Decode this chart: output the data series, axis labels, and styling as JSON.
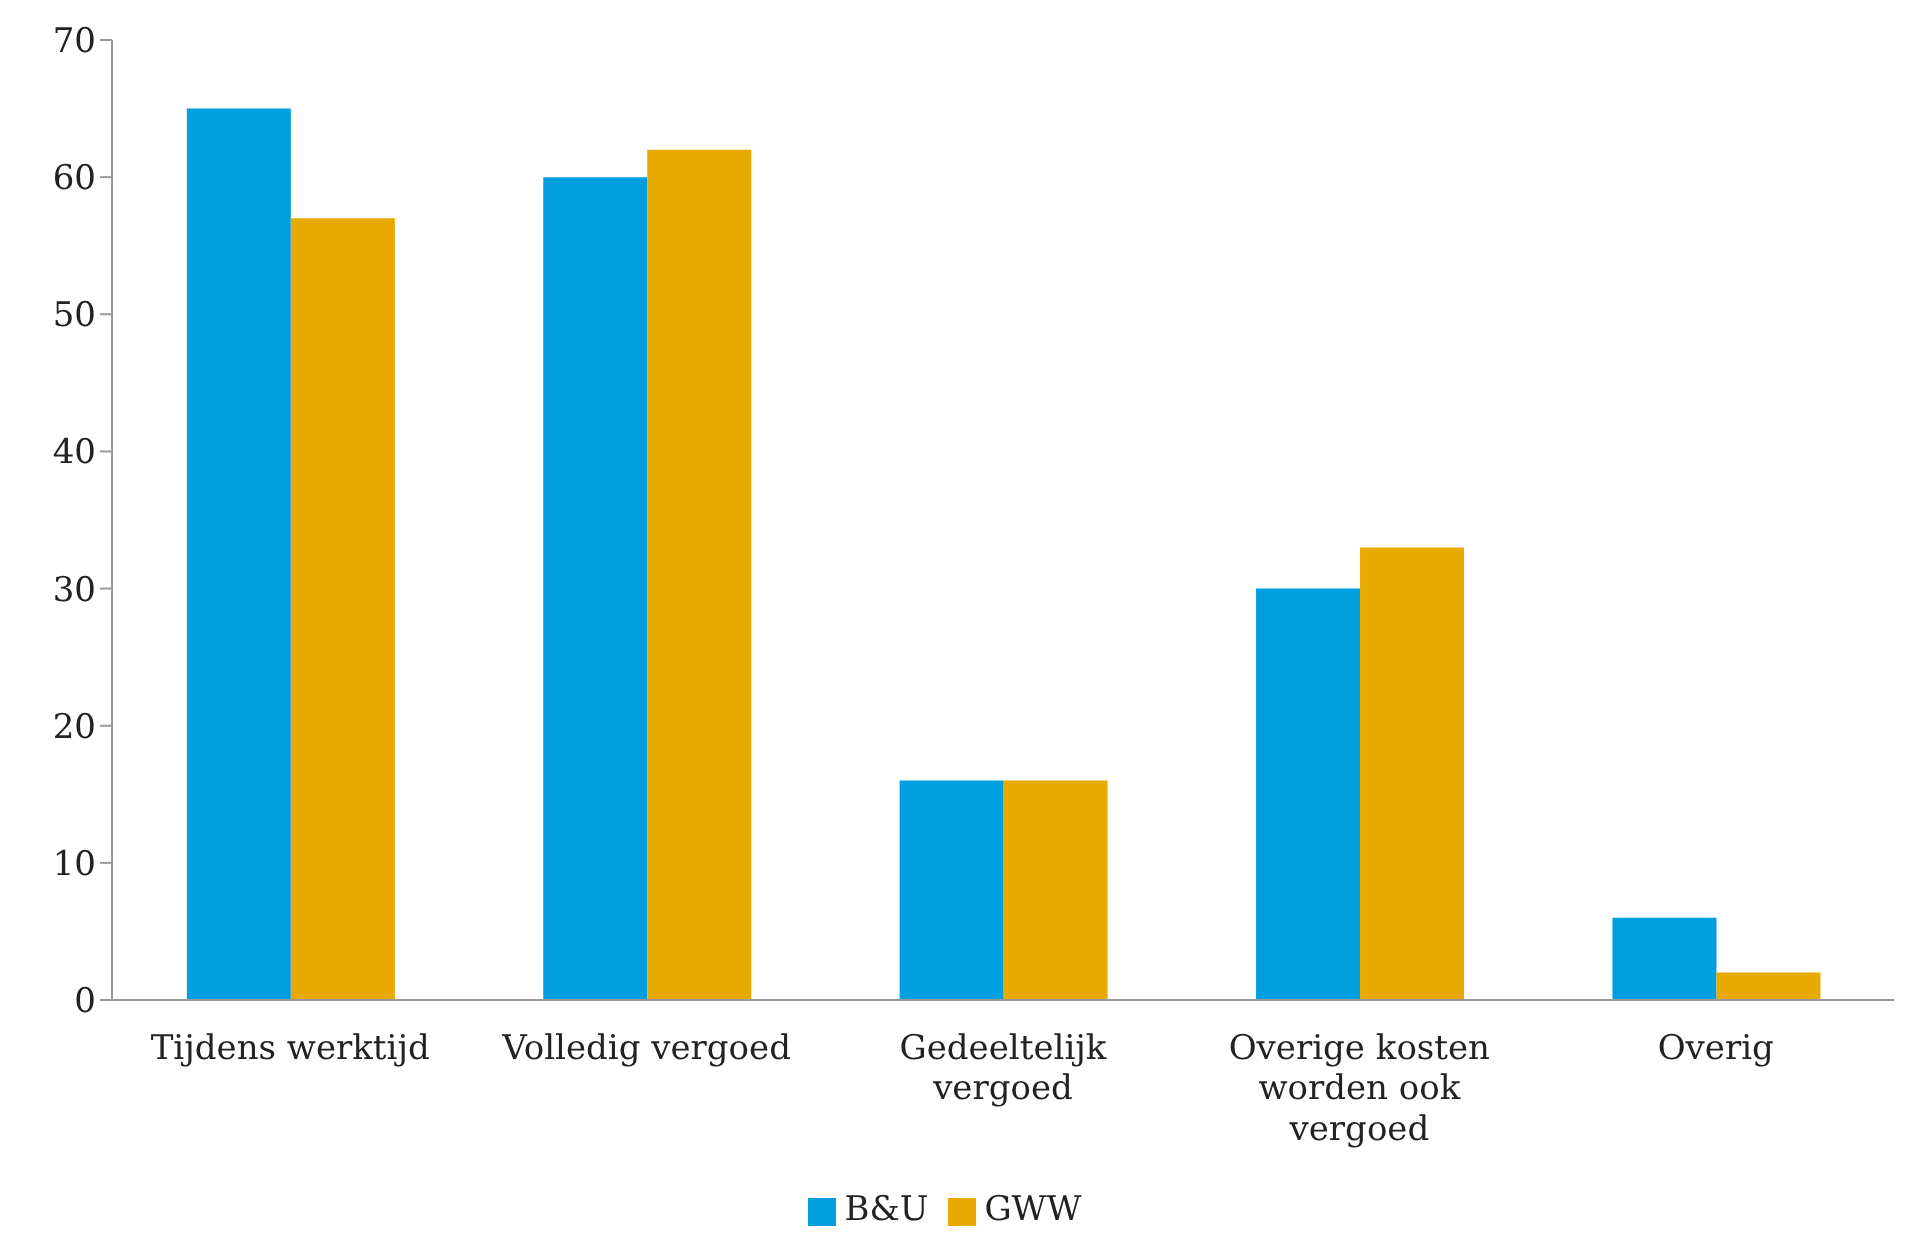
{
  "chart_data": {
    "type": "bar",
    "categories": [
      "Tijdens werktijd",
      "Volledig vergoed",
      "Gedeeltelijk vergoed",
      "Overige kosten worden ook vergoed",
      "Overig"
    ],
    "series": [
      {
        "name": "B&U",
        "color": "#009fdf",
        "values": [
          65,
          60,
          16,
          30,
          6
        ]
      },
      {
        "name": "GWW",
        "color": "#e8a900",
        "values": [
          57,
          62,
          16,
          33,
          2
        ]
      }
    ],
    "ylim": [
      0,
      70
    ],
    "yticks": [
      0,
      10,
      20,
      30,
      40,
      50,
      60,
      70
    ],
    "grid": false,
    "legend": "bottom"
  }
}
